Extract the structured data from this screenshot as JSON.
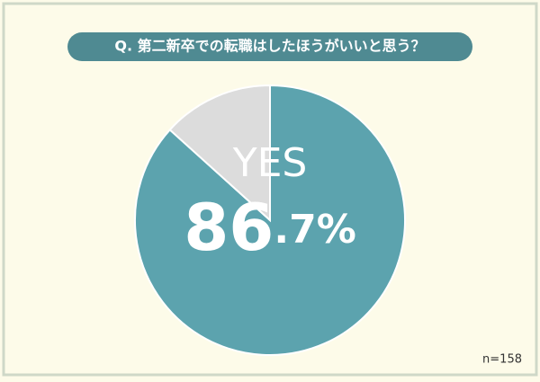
{
  "chart_data": {
    "type": "pie",
    "title": "Q. 第二新卒での転職はしたほうがいいと思う？",
    "categories": [
      "YES",
      null
    ],
    "values": [
      86.7,
      13.3
    ],
    "value_labels": [
      "86.7%",
      null
    ],
    "colors": [
      "#5ca3ae",
      "#dcdcdc"
    ],
    "note": "n=158"
  }
}
